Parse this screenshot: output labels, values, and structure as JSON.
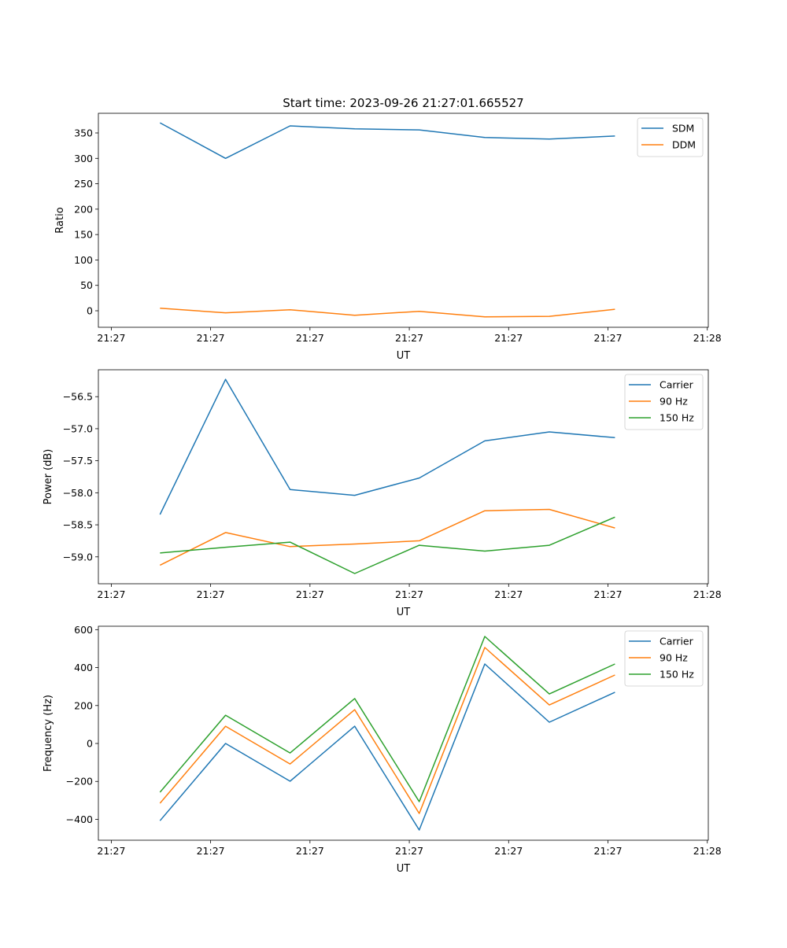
{
  "title": "Start time: 2023-09-26 21:27:01.665527",
  "colors": {
    "c0": "#1f77b4",
    "c1": "#ff7f0e",
    "c2": "#2ca02c"
  },
  "chart_data": [
    {
      "type": "line",
      "title": "Start time: 2023-09-26 21:27:01.665527",
      "xlabel": "UT",
      "ylabel": "Ratio",
      "x": [
        0.49,
        1.15,
        1.8,
        2.45,
        3.1,
        3.76,
        4.41,
        5.07
      ],
      "xlim": [
        -0.13,
        6.01
      ],
      "xticks": [
        0,
        1,
        2,
        3,
        4,
        5,
        6
      ],
      "xticklabels": [
        "21:27",
        "21:27",
        "21:27",
        "21:27",
        "21:27",
        "21:27",
        "21:28"
      ],
      "ylim": [
        -32.5,
        388.7
      ],
      "yticks": [
        0,
        50,
        100,
        150,
        200,
        250,
        300,
        350
      ],
      "yticklabels": [
        "0",
        "50",
        "100",
        "150",
        "200",
        "250",
        "300",
        "350"
      ],
      "legend": "top-right",
      "grid": false,
      "series": [
        {
          "name": "SDM",
          "color": "#1f77b4",
          "values": [
            370,
            300,
            364,
            358,
            356,
            341,
            338,
            344
          ]
        },
        {
          "name": "DDM",
          "color": "#ff7f0e",
          "values": [
            5,
            -4,
            2,
            -9,
            -1,
            -12,
            -11,
            3
          ]
        }
      ]
    },
    {
      "type": "line",
      "xlabel": "UT",
      "ylabel": "Power (dB)",
      "x": [
        0.49,
        1.15,
        1.8,
        2.45,
        3.1,
        3.76,
        4.41,
        5.07
      ],
      "xlim": [
        -0.13,
        6.01
      ],
      "xticks": [
        0,
        1,
        2,
        3,
        4,
        5,
        6
      ],
      "xticklabels": [
        "21:27",
        "21:27",
        "21:27",
        "21:27",
        "21:27",
        "21:27",
        "21:28"
      ],
      "ylim": [
        -59.42,
        -56.08
      ],
      "yticks": [
        -59.0,
        -58.5,
        -58.0,
        -57.5,
        -57.0,
        -56.5
      ],
      "yticklabels": [
        "−59.0",
        "−58.5",
        "−58.0",
        "−57.5",
        "−57.0",
        "−56.5"
      ],
      "legend": "top-right",
      "grid": false,
      "series": [
        {
          "name": "Carrier",
          "color": "#1f77b4",
          "values": [
            -58.34,
            -56.23,
            -57.95,
            -58.04,
            -57.77,
            -57.19,
            -57.05,
            -57.14
          ]
        },
        {
          "name": "90 Hz",
          "color": "#ff7f0e",
          "values": [
            -59.13,
            -58.62,
            -58.84,
            -58.8,
            -58.75,
            -58.28,
            -58.26,
            -58.55
          ]
        },
        {
          "name": "150 Hz",
          "color": "#2ca02c",
          "values": [
            -58.94,
            -58.85,
            -58.77,
            -59.26,
            -58.82,
            -58.91,
            -58.82,
            -58.38
          ]
        }
      ]
    },
    {
      "type": "line",
      "xlabel": "UT",
      "ylabel": "Frequency (Hz)",
      "x": [
        0.49,
        1.15,
        1.8,
        2.45,
        3.1,
        3.76,
        4.41,
        5.07
      ],
      "xlim": [
        -0.13,
        6.01
      ],
      "xticks": [
        0,
        1,
        2,
        3,
        4,
        5,
        6
      ],
      "xticklabels": [
        "21:27",
        "21:27",
        "21:27",
        "21:27",
        "21:27",
        "21:27",
        "21:28"
      ],
      "ylim": [
        -510,
        618
      ],
      "yticks": [
        -400,
        -200,
        0,
        200,
        400,
        600
      ],
      "yticklabels": [
        "−400",
        "−200",
        "0",
        "200",
        "400",
        "600"
      ],
      "legend": "top-right",
      "grid": false,
      "series": [
        {
          "name": "Carrier",
          "color": "#1f77b4",
          "values": [
            -407,
            0,
            -199,
            91,
            -456,
            419,
            112,
            270
          ]
        },
        {
          "name": "90 Hz",
          "color": "#ff7f0e",
          "values": [
            -315,
            91,
            -108,
            178,
            -369,
            506,
            203,
            361
          ]
        },
        {
          "name": "150 Hz",
          "color": "#2ca02c",
          "values": [
            -257,
            149,
            -50,
            237,
            -307,
            564,
            261,
            419
          ]
        }
      ]
    }
  ]
}
